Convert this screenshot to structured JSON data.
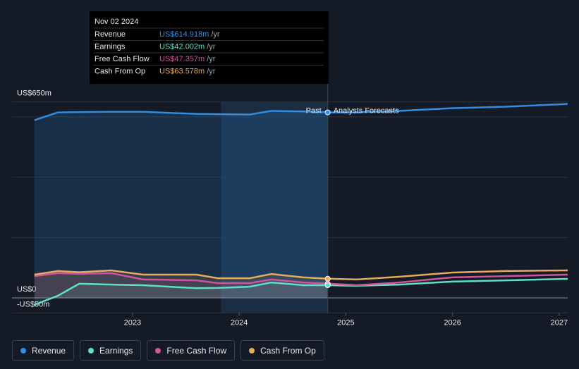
{
  "chart_data": {
    "type": "line",
    "x": [
      2022.08,
      2022.3,
      2022.5,
      2022.8,
      2023.1,
      2023.3,
      2023.6,
      2023.8,
      2024.1,
      2024.3,
      2024.6,
      2024.83,
      2025.1,
      2025.5,
      2026,
      2026.5,
      2027.08
    ],
    "series": [
      {
        "name": "Revenue",
        "color": "#2f8de4",
        "values": [
          589,
          615,
          616,
          617,
          617,
          614,
          610,
          609,
          608,
          620,
          618,
          614.918,
          615,
          620,
          629,
          634,
          643
        ]
      },
      {
        "name": "Earnings",
        "color": "#5ee0c8",
        "values": [
          -23,
          7,
          47,
          44,
          42,
          38,
          32,
          33,
          37,
          51,
          42,
          42.002,
          40,
          44,
          54,
          58,
          63
        ]
      },
      {
        "name": "Free Cash Flow",
        "color": "#d0549a",
        "values": [
          72,
          82,
          80,
          82,
          61,
          60,
          58,
          49,
          49,
          61,
          51,
          47.357,
          42,
          51,
          68,
          72,
          77
        ]
      },
      {
        "name": "Cash From Op",
        "color": "#e9a95d",
        "values": [
          77,
          89,
          85,
          91,
          77,
          77,
          77,
          65,
          65,
          79,
          68,
          63.578,
          61,
          70,
          84,
          89,
          91
        ]
      }
    ],
    "xlim": [
      2021.87,
      2027.08
    ],
    "xticks": [
      2023,
      2024,
      2025,
      2026,
      2027
    ],
    "ylim": [
      -50,
      650
    ],
    "yticks": [
      {
        "value": 650,
        "label": "US$650m"
      },
      {
        "value": 0,
        "label": "US$0"
      },
      {
        "value": -50,
        "label": "-US$50m"
      }
    ],
    "ygrid": [
      0,
      200,
      400,
      600
    ],
    "grid": true,
    "past_end": 2024.83,
    "highlight": [
      2023.83,
      2024.83
    ],
    "past_label": "Past",
    "forecast_label": "Analysts Forecasts",
    "tooltip": {
      "date": "Nov 02 2024",
      "rows": [
        {
          "label": "Revenue",
          "value_label": "US$614.918m",
          "unit": "/yr"
        },
        {
          "label": "Earnings",
          "value_label": "US$42.002m",
          "unit": "/yr"
        },
        {
          "label": "Free Cash Flow",
          "value_label": "US$47.357m",
          "unit": "/yr"
        },
        {
          "label": "Cash From Op",
          "value_label": "US$63.578m",
          "unit": "/yr"
        }
      ]
    }
  }
}
